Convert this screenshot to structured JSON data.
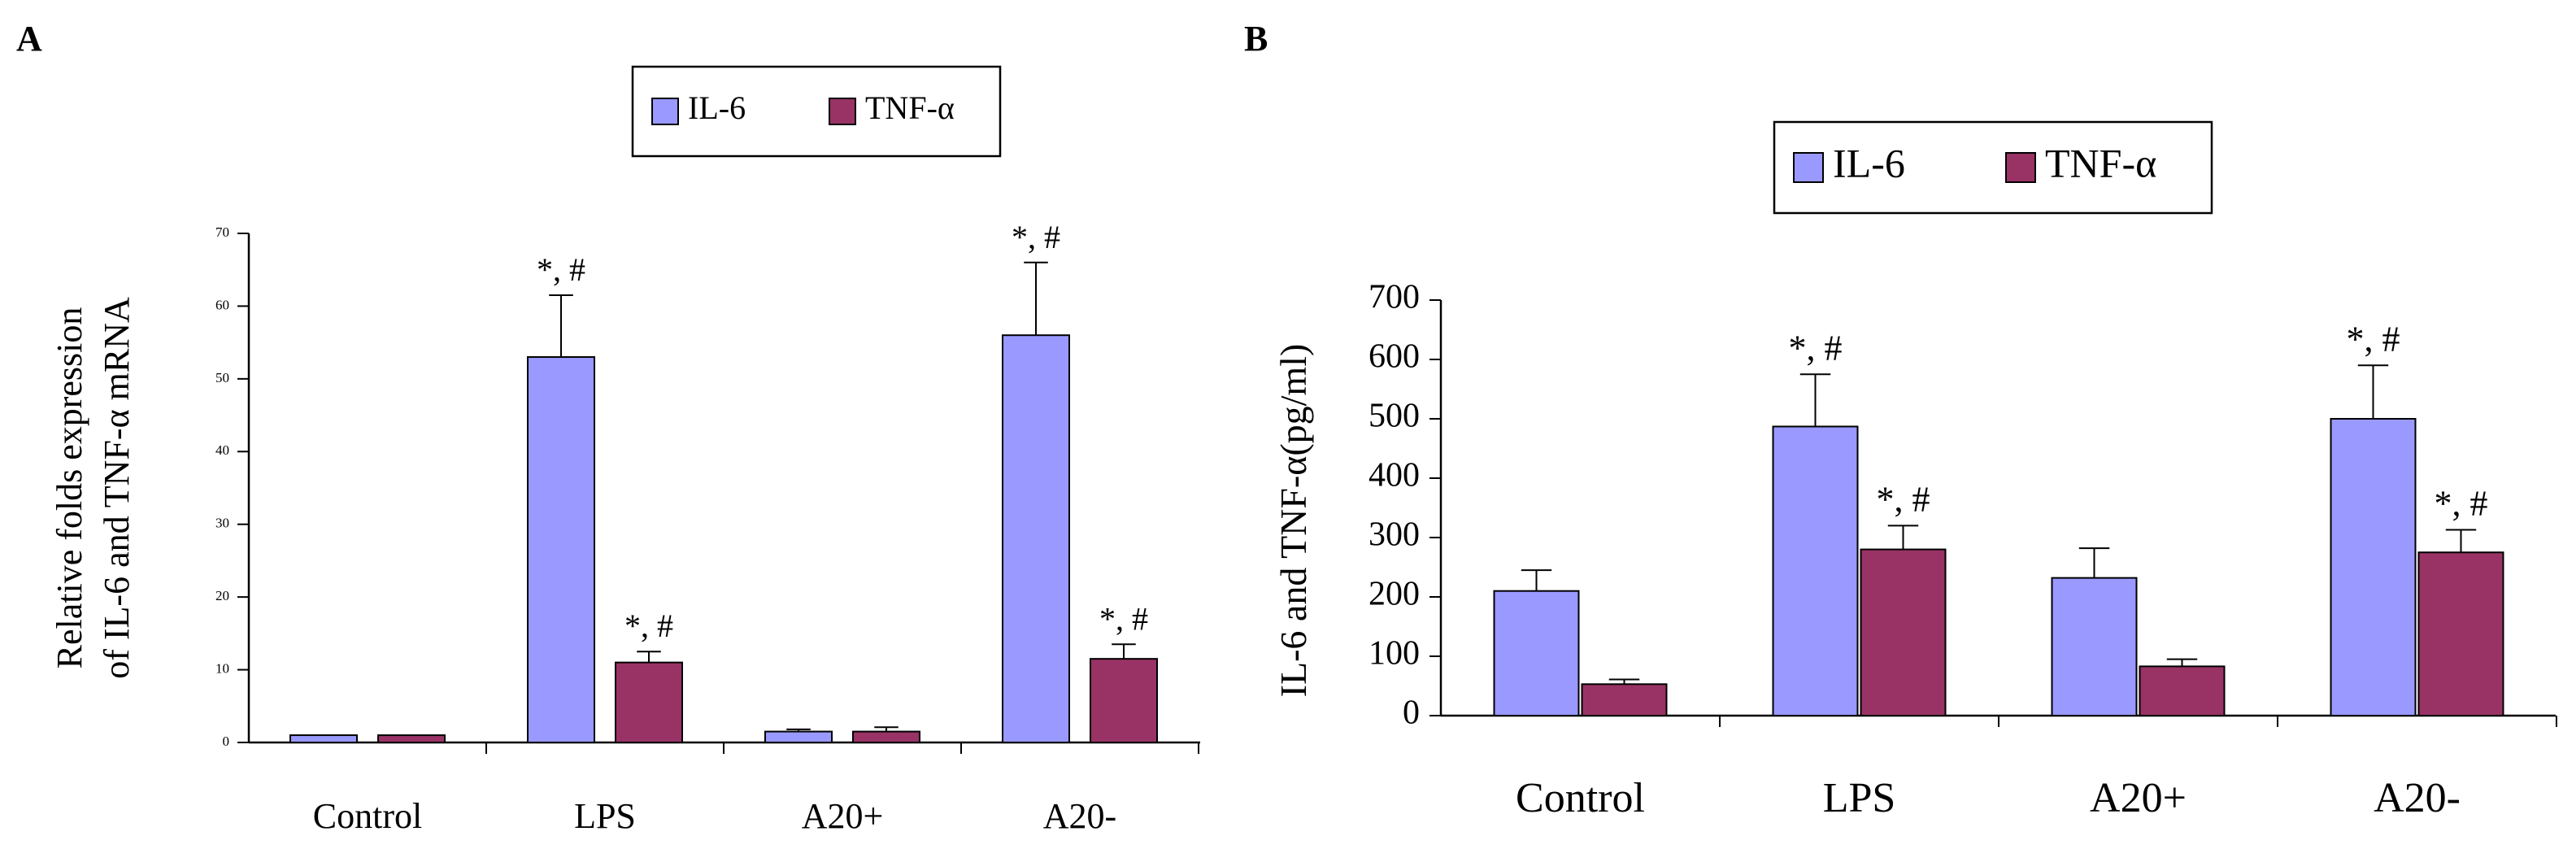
{
  "figure": {
    "panels": [
      {
        "id": "A",
        "letter": "A"
      },
      {
        "id": "B",
        "letter": "B"
      }
    ]
  },
  "colors": {
    "il6": "#9999ff",
    "tnf": "#993366",
    "axis": "#000000",
    "background": "#ffffff"
  },
  "chart_data": [
    {
      "panel": "A",
      "type": "bar",
      "title": "",
      "xlabel": "",
      "ylabel_lines": [
        "Relative folds expression",
        "of IL-6 and TNF-α mRNA"
      ],
      "categories": [
        "Control",
        "LPS",
        "A20+",
        "A20-"
      ],
      "series": [
        {
          "name": "IL-6",
          "values": [
            1,
            53,
            1.5,
            56
          ],
          "errors": [
            0,
            8.5,
            0.3,
            10
          ],
          "annotations": [
            "",
            "*, #",
            "",
            "*, #"
          ]
        },
        {
          "name": "TNF-α",
          "values": [
            1,
            11,
            1.5,
            11.5
          ],
          "errors": [
            0,
            1.5,
            0.6,
            2
          ],
          "annotations": [
            "",
            "*, #",
            "",
            "*, #"
          ]
        }
      ],
      "ylim": [
        0,
        70
      ],
      "yticks": [
        0,
        10,
        20,
        30,
        40,
        50,
        60,
        70
      ],
      "legend": {
        "position": "top-center",
        "entries": [
          "IL-6",
          "TNF-α"
        ]
      },
      "grid": false
    },
    {
      "panel": "B",
      "type": "bar",
      "title": "",
      "xlabel": "",
      "ylabel_lines": [
        "IL-6 and TNF-α(pg/ml)"
      ],
      "categories": [
        "Control",
        "LPS",
        "A20+",
        "A20-"
      ],
      "series": [
        {
          "name": "IL-6",
          "values": [
            210,
            487,
            232,
            500
          ],
          "errors": [
            35,
            88,
            50,
            90
          ],
          "annotations": [
            "",
            "*, #",
            "",
            "*, #"
          ]
        },
        {
          "name": "TNF-α",
          "values": [
            53,
            280,
            83,
            275
          ],
          "errors": [
            8,
            40,
            12,
            38
          ],
          "annotations": [
            "",
            "*, #",
            "",
            "*, #"
          ]
        }
      ],
      "ylim": [
        0,
        700
      ],
      "yticks": [
        0,
        100,
        200,
        300,
        400,
        500,
        600,
        700
      ],
      "legend": {
        "position": "top-center",
        "entries": [
          "IL-6",
          "TNF-α"
        ]
      },
      "grid": false
    }
  ]
}
